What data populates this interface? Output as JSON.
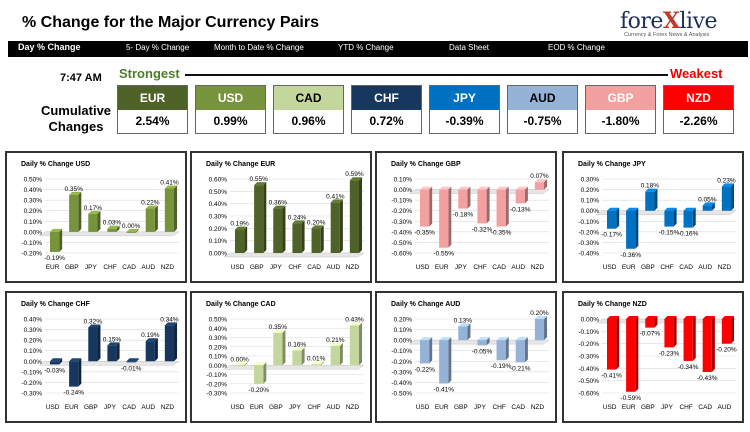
{
  "header": {
    "title": "% Change for the Major Currency Pairs",
    "logo": {
      "main": "fore",
      "x": "X",
      "rest": "live",
      "tagline": "Currency & Forex News & Analysis"
    }
  },
  "nav": [
    {
      "label": "Day % Change",
      "active": true
    },
    {
      "label": "5- Day % Change",
      "active": false
    },
    {
      "label": "Month to Date % Change",
      "active": false
    },
    {
      "label": "YTD % Change",
      "active": false
    },
    {
      "label": "Data Sheet",
      "active": false
    },
    {
      "label": "EOD % Change",
      "active": false
    }
  ],
  "summary": {
    "time": "7:47 AM",
    "strongest_label": "Strongest",
    "weakest_label": "Weakest",
    "cumulative_label": "Cumulative Changes",
    "currencies": [
      {
        "code": "EUR",
        "value": "2.54%",
        "color": "#4f6228"
      },
      {
        "code": "USD",
        "value": "0.99%",
        "color": "#77933c"
      },
      {
        "code": "CAD",
        "value": "0.96%",
        "color": "#c3d69b",
        "text_color": "#000000"
      },
      {
        "code": "CHF",
        "value": "0.72%",
        "color": "#17375e"
      },
      {
        "code": "JPY",
        "value": "-0.39%",
        "color": "#0070c0"
      },
      {
        "code": "AUD",
        "value": "-0.75%",
        "color": "#95b3d7",
        "text_color": "#000000"
      },
      {
        "code": "GBP",
        "value": "-1.80%",
        "color": "#f2a0a0"
      },
      {
        "code": "NZD",
        "value": "-2.26%",
        "color": "#ff0000"
      }
    ]
  },
  "chart_data": [
    {
      "type": "bar",
      "title": "Daily % Change USD",
      "color": "#77933c",
      "categories": [
        "EUR",
        "GBP",
        "JPY",
        "CHF",
        "CAD",
        "AUD",
        "NZD"
      ],
      "values": [
        -0.19,
        0.35,
        0.17,
        0.03,
        0.0,
        0.22,
        0.41
      ],
      "value_labels": [
        "-0.19%",
        "0.35%",
        "0.17%",
        "0.03%",
        "0.00%",
        "0.22%",
        "0.41%"
      ],
      "ylim": [
        -0.2,
        0.5
      ],
      "ytick_step": 0.1
    },
    {
      "type": "bar",
      "title": "Daily % Change EUR",
      "color": "#4f6228",
      "categories": [
        "USD",
        "GBP",
        "JPY",
        "CHF",
        "CAD",
        "AUD",
        "NZD"
      ],
      "values": [
        0.19,
        0.55,
        0.36,
        0.24,
        0.2,
        0.41,
        0.59
      ],
      "value_labels": [
        "0.19%",
        "0.55%",
        "0.36%",
        "0.24%",
        "0.20%",
        "0.41%",
        "0.59%"
      ],
      "ylim": [
        0.0,
        0.6
      ],
      "ytick_step": 0.1
    },
    {
      "type": "bar",
      "title": "Daily % Change GBP",
      "color": "#f2a0a0",
      "categories": [
        "USD",
        "EUR",
        "JPY",
        "CHF",
        "CAD",
        "AUD",
        "NZD"
      ],
      "values": [
        -0.35,
        -0.55,
        -0.18,
        -0.32,
        -0.35,
        -0.13,
        0.07
      ],
      "value_labels": [
        "-0.35%",
        "-0.55%",
        "-0.18%",
        "-0.32%",
        "-0.35%",
        "-0.13%",
        "0.07%"
      ],
      "ylim": [
        -0.6,
        0.1
      ],
      "ytick_step": 0.1
    },
    {
      "type": "bar",
      "title": "Daily % Change JPY",
      "color": "#0070c0",
      "categories": [
        "USD",
        "EUR",
        "GBP",
        "CHF",
        "CAD",
        "AUD",
        "NZD"
      ],
      "values": [
        -0.17,
        -0.36,
        0.18,
        -0.15,
        -0.16,
        0.05,
        0.23
      ],
      "value_labels": [
        "-0.17%",
        "-0.36%",
        "0.18%",
        "-0.15%",
        "-0.16%",
        "0.05%",
        "0.23%"
      ],
      "ylim": [
        -0.4,
        0.3
      ],
      "ytick_step": 0.1
    },
    {
      "type": "bar",
      "title": "Daily % Change CHF",
      "color": "#17375e",
      "categories": [
        "USD",
        "EUR",
        "GBP",
        "JPY",
        "CAD",
        "AUD",
        "NZD"
      ],
      "values": [
        -0.03,
        -0.24,
        0.32,
        0.15,
        -0.01,
        0.19,
        0.34
      ],
      "value_labels": [
        "-0.03%",
        "-0.24%",
        "0.32%",
        "0.15%",
        "-0.01%",
        "0.19%",
        "0.34%"
      ],
      "ylim": [
        -0.3,
        0.4
      ],
      "ytick_step": 0.1
    },
    {
      "type": "bar",
      "title": "Daily % Change CAD",
      "color": "#c3d69b",
      "categories": [
        "USD",
        "EUR",
        "GBP",
        "JPY",
        "CHF",
        "AUD",
        "NZD"
      ],
      "values": [
        0.0,
        -0.2,
        0.35,
        0.16,
        0.01,
        0.21,
        0.43
      ],
      "value_labels": [
        "0.00%",
        "-0.20%",
        "0.35%",
        "0.16%",
        "0.01%",
        "0.21%",
        "0.43%"
      ],
      "ylim": [
        -0.3,
        0.5
      ],
      "ytick_step": 0.1
    },
    {
      "type": "bar",
      "title": "Daily % Change AUD",
      "color": "#95b3d7",
      "categories": [
        "USD",
        "EUR",
        "GBP",
        "JPY",
        "CHF",
        "CAD",
        "NZD"
      ],
      "values": [
        -0.22,
        -0.41,
        0.13,
        -0.05,
        -0.19,
        -0.21,
        0.2
      ],
      "value_labels": [
        "-0.22%",
        "-0.41%",
        "0.13%",
        "-0.05%",
        "-0.19%",
        "-0.21%",
        "0.20%"
      ],
      "ylim": [
        -0.5,
        0.2
      ],
      "ytick_step": 0.1
    },
    {
      "type": "bar",
      "title": "Daily % Change NZD",
      "color": "#ff0000",
      "categories": [
        "USD",
        "EUR",
        "GBP",
        "JPY",
        "CHF",
        "CAD",
        "AUD"
      ],
      "values": [
        -0.41,
        -0.59,
        -0.07,
        -0.23,
        -0.34,
        -0.43,
        -0.2
      ],
      "value_labels": [
        "-0.41%",
        "-0.59%",
        "-0.07%",
        "-0.23%",
        "-0.34%",
        "-0.43%",
        "-0.20%"
      ],
      "ylim": [
        -0.6,
        0.0
      ],
      "ytick_step": 0.1
    }
  ]
}
